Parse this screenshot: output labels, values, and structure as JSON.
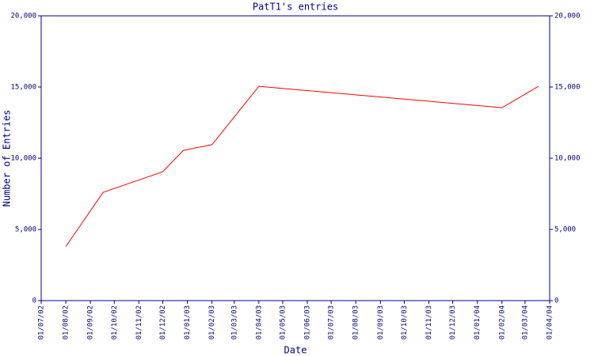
{
  "chart_data": {
    "type": "line",
    "title": "PatT1's entries",
    "x_label": "Date",
    "y_label": "Number of Entries",
    "x": [
      "2002-08-01",
      "2002-09-17",
      "2002-12-01",
      "2002-12-27",
      "2003-02-01",
      "2003-04-01",
      "2004-02-01",
      "2004-03-18"
    ],
    "series": [
      {
        "name": "PatT1",
        "color": "#ff0000",
        "values": [
          3800,
          7600,
          9050,
          10550,
          10950,
          15050,
          13550,
          15050
        ]
      }
    ],
    "xlim": [
      "2002-07-01",
      "2004-04-01"
    ],
    "xticks": [
      {
        "value": "2002-07-01",
        "label": "01/07/02"
      },
      {
        "value": "2002-08-01",
        "label": "01/08/02"
      },
      {
        "value": "2002-09-01",
        "label": "01/09/02"
      },
      {
        "value": "2002-10-01",
        "label": "01/10/02"
      },
      {
        "value": "2002-11-01",
        "label": "01/11/02"
      },
      {
        "value": "2002-12-01",
        "label": "01/12/02"
      },
      {
        "value": "2003-01-01",
        "label": "01/01/03"
      },
      {
        "value": "2003-02-01",
        "label": "01/02/03"
      },
      {
        "value": "2003-03-01",
        "label": "01/03/03"
      },
      {
        "value": "2003-04-01",
        "label": "01/04/03"
      },
      {
        "value": "2003-05-01",
        "label": "01/05/03"
      },
      {
        "value": "2003-06-01",
        "label": "01/06/03"
      },
      {
        "value": "2003-07-01",
        "label": "01/07/03"
      },
      {
        "value": "2003-08-01",
        "label": "01/08/03"
      },
      {
        "value": "2003-09-01",
        "label": "01/09/03"
      },
      {
        "value": "2003-10-01",
        "label": "01/10/03"
      },
      {
        "value": "2003-11-01",
        "label": "01/11/03"
      },
      {
        "value": "2003-12-01",
        "label": "01/12/03"
      },
      {
        "value": "2004-01-01",
        "label": "01/01/04"
      },
      {
        "value": "2004-02-01",
        "label": "01/02/04"
      },
      {
        "value": "2004-03-01",
        "label": "01/03/04"
      },
      {
        "value": "2004-04-01",
        "label": "01/04/04"
      }
    ],
    "ylim": [
      0,
      20000
    ],
    "yticks": [
      0,
      {
        "value": 5000,
        "label": "5,000"
      },
      {
        "value": 10000,
        "label": "10,000"
      },
      {
        "value": 15000,
        "label": "15,000"
      },
      {
        "value": 20000,
        "label": "20,000"
      }
    ],
    "y2lim": [
      0,
      20000
    ],
    "y2ticks": [
      0,
      {
        "value": 5000,
        "label": "5,000"
      },
      {
        "value": 10000,
        "label": "10,000"
      },
      {
        "value": 15000,
        "label": "15,000"
      },
      {
        "value": 20000,
        "label": "20,000"
      }
    ],
    "axis_color": "#000080",
    "grid": false
  }
}
